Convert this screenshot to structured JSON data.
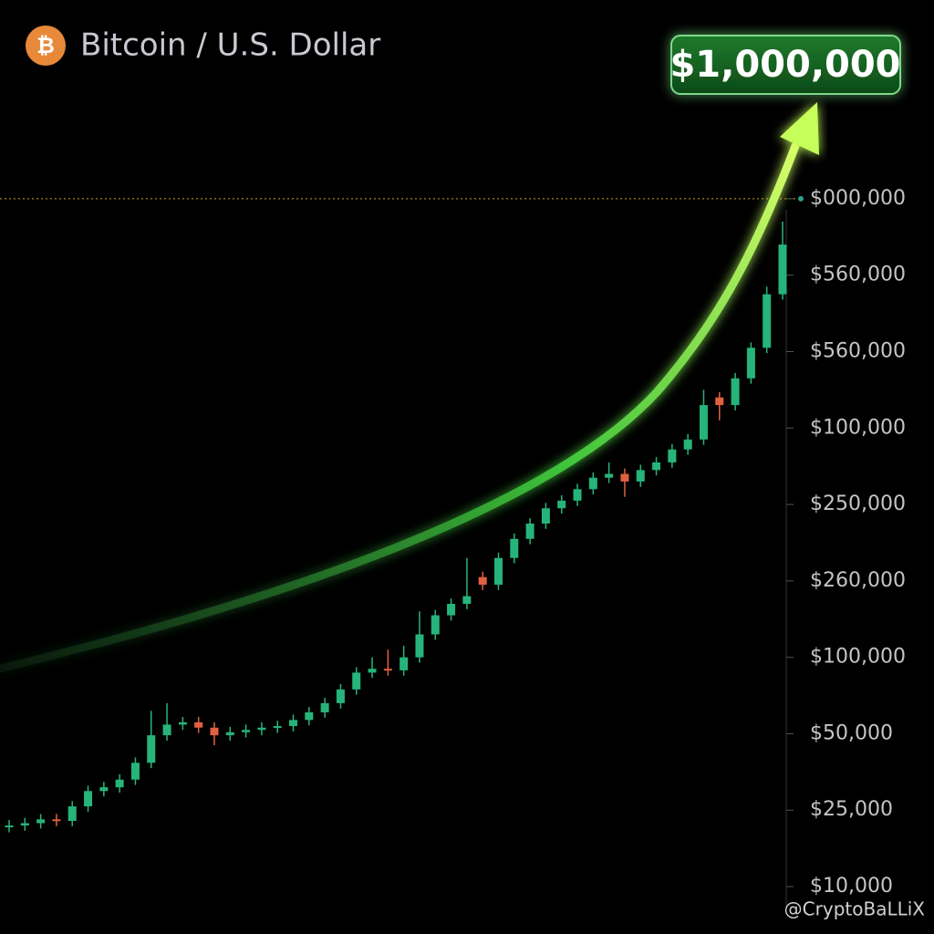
{
  "chart_data": {
    "type": "candlestick",
    "title": "Bitcoin / U.S. Dollar",
    "icon": "₿",
    "annotation": "$1,000,000",
    "watermark": "@CryptoBaLLiX",
    "up_color": "#26b47a",
    "down_color": "#e0603f",
    "price_line": 9,
    "ylim": [
      -0.62,
      11.6
    ],
    "yticks": [
      {
        "value": 0,
        "label": "$10,000"
      },
      {
        "value": 1,
        "label": "$25,000"
      },
      {
        "value": 2,
        "label": "$50,000"
      },
      {
        "value": 3,
        "label": "$100,000"
      },
      {
        "value": 4,
        "label": "$260,000"
      },
      {
        "value": 5,
        "label": "$250,000"
      },
      {
        "value": 6,
        "label": "$100,000"
      },
      {
        "value": 7,
        "label": "$560,000"
      },
      {
        "value": 8,
        "label": "$560,000"
      },
      {
        "value": 9,
        "label": "$000,000"
      }
    ],
    "open": [
      0.78,
      0.8,
      0.83,
      0.88,
      0.86,
      1.05,
      1.25,
      1.3,
      1.4,
      1.62,
      1.98,
      2.12,
      2.15,
      2.08,
      1.98,
      2.02,
      2.05,
      2.08,
      2.1,
      2.18,
      2.28,
      2.4,
      2.58,
      2.8,
      2.85,
      2.83,
      3.0,
      3.3,
      3.55,
      3.7,
      4.05,
      3.95,
      4.3,
      4.55,
      4.75,
      4.95,
      5.05,
      5.2,
      5.35,
      5.4,
      5.3,
      5.45,
      5.55,
      5.72,
      5.85,
      6.4,
      6.3,
      6.65,
      7.05,
      7.75
    ],
    "high": [
      0.87,
      0.9,
      0.95,
      0.95,
      1.12,
      1.32,
      1.37,
      1.47,
      1.69,
      2.3,
      2.4,
      2.22,
      2.22,
      2.15,
      2.09,
      2.12,
      2.15,
      2.17,
      2.25,
      2.35,
      2.47,
      2.65,
      2.87,
      3.0,
      3.1,
      3.15,
      3.6,
      3.62,
      3.77,
      4.3,
      4.12,
      4.37,
      4.62,
      4.82,
      5.02,
      5.12,
      5.27,
      5.42,
      5.55,
      5.47,
      5.52,
      5.62,
      5.79,
      5.92,
      6.5,
      6.47,
      6.72,
      7.12,
      7.85,
      8.7
    ],
    "low": [
      0.71,
      0.73,
      0.76,
      0.79,
      0.79,
      0.98,
      1.18,
      1.23,
      1.33,
      1.55,
      1.91,
      2.05,
      2.01,
      1.85,
      1.91,
      1.95,
      1.98,
      2.01,
      2.03,
      2.11,
      2.21,
      2.33,
      2.51,
      2.73,
      2.76,
      2.76,
      2.93,
      3.23,
      3.48,
      3.63,
      3.88,
      3.88,
      4.23,
      4.48,
      4.68,
      4.88,
      4.98,
      5.13,
      5.28,
      5.1,
      5.23,
      5.38,
      5.48,
      5.65,
      5.78,
      6.1,
      6.23,
      6.58,
      6.98,
      7.68
    ],
    "close": [
      0.8,
      0.83,
      0.88,
      0.86,
      1.05,
      1.25,
      1.3,
      1.4,
      1.62,
      1.98,
      2.12,
      2.15,
      2.08,
      1.98,
      2.02,
      2.05,
      2.08,
      2.1,
      2.18,
      2.28,
      2.4,
      2.58,
      2.8,
      2.85,
      2.83,
      3.0,
      3.3,
      3.55,
      3.7,
      3.8,
      3.95,
      4.3,
      4.55,
      4.75,
      4.95,
      5.05,
      5.2,
      5.35,
      5.4,
      5.3,
      5.45,
      5.55,
      5.72,
      5.85,
      6.3,
      6.3,
      6.65,
      7.05,
      7.75,
      8.4
    ]
  }
}
